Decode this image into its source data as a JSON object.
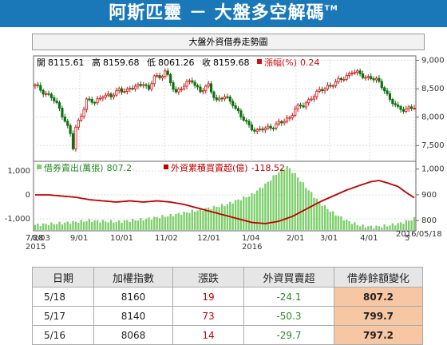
{
  "banner": {
    "title": "阿斯匹靈 － 大盤多空解碼",
    "tm": "TM"
  },
  "chart_title": "大盤外資借券走勢圖",
  "top_legend": {
    "open_label": "開",
    "open": "8115.61",
    "high_label": "高",
    "high": "8159.68",
    "low_label": "低",
    "low": "8061.26",
    "close_label": "收",
    "close": "8159.68",
    "pct_label": "漲幅(%)",
    "pct": "0.24"
  },
  "bottom_legend": {
    "lend_label": "借券賣出(萬張)",
    "lend_value": "807.2",
    "foreign_label": "外資累積買賣超(億)",
    "foreign_value": "-118.52"
  },
  "date_marker": "2016/05/18",
  "chart_data": {
    "type": "candlestick+line+bar",
    "x_ticks": [
      "7/28",
      "8/03",
      "9/01",
      "10/01",
      "11/02",
      "12/01",
      "1/04",
      "2/01",
      "3/01",
      "4/01",
      "5"
    ],
    "x_tick_years": {
      "7/28": "2015",
      "1/04": "2016"
    },
    "price_axis": {
      "ticks": [
        7500,
        8000,
        8500,
        9000
      ],
      "labels": [
        "7,500",
        "8,000",
        "8,500",
        "9,000"
      ],
      "range": [
        7250,
        9050
      ]
    },
    "left_axis": {
      "ticks": [
        1000,
        0,
        -1000
      ],
      "labels": [
        "1,000",
        "0",
        "-1,000"
      ],
      "range": [
        -1500,
        1400
      ]
    },
    "right_axis": {
      "ticks": [
        800,
        900,
        1000
      ],
      "labels": [
        "800",
        "900",
        "1,000"
      ],
      "range": [
        760,
        1030
      ]
    },
    "index_close_path": [
      [
        0,
        8550
      ],
      [
        3,
        8450
      ],
      [
        6,
        8350
      ],
      [
        9,
        8150
      ],
      [
        11,
        7950
      ],
      [
        13,
        7700
      ],
      [
        14,
        7450
      ],
      [
        15,
        7800
      ],
      [
        17,
        8050
      ],
      [
        19,
        8300
      ],
      [
        22,
        8250
      ],
      [
        25,
        8400
      ],
      [
        28,
        8350
      ],
      [
        31,
        8500
      ],
      [
        34,
        8450
      ],
      [
        37,
        8550
      ],
      [
        40,
        8600
      ],
      [
        42,
        8450
      ],
      [
        44,
        8750
      ],
      [
        46,
        8700
      ],
      [
        48,
        8800
      ],
      [
        50,
        8600
      ],
      [
        52,
        8450
      ],
      [
        55,
        8550
      ],
      [
        58,
        8650
      ],
      [
        61,
        8450
      ],
      [
        64,
        8550
      ],
      [
        67,
        8300
      ],
      [
        70,
        8350
      ],
      [
        73,
        8250
      ],
      [
        76,
        8000
      ],
      [
        79,
        7850
      ],
      [
        82,
        7750
      ],
      [
        85,
        7800
      ],
      [
        88,
        7850
      ],
      [
        91,
        7900
      ],
      [
        94,
        8000
      ],
      [
        96,
        8150
      ],
      [
        99,
        8200
      ],
      [
        102,
        8350
      ],
      [
        105,
        8450
      ],
      [
        108,
        8550
      ],
      [
        111,
        8600
      ],
      [
        114,
        8700
      ],
      [
        117,
        8800
      ],
      [
        120,
        8750
      ],
      [
        123,
        8700
      ],
      [
        126,
        8650
      ],
      [
        129,
        8500
      ],
      [
        131,
        8300
      ],
      [
        134,
        8150
      ],
      [
        137,
        8150
      ],
      [
        140,
        8160
      ]
    ],
    "foreign_cumulative_path": [
      [
        0,
        0
      ],
      [
        5,
        0
      ],
      [
        10,
        -50
      ],
      [
        15,
        -100
      ],
      [
        20,
        -200
      ],
      [
        25,
        -250
      ],
      [
        30,
        -300
      ],
      [
        35,
        -250
      ],
      [
        40,
        -300
      ],
      [
        45,
        -250
      ],
      [
        50,
        -300
      ],
      [
        55,
        -400
      ],
      [
        60,
        -550
      ],
      [
        65,
        -700
      ],
      [
        70,
        -850
      ],
      [
        75,
        -1000
      ],
      [
        80,
        -1150
      ],
      [
        85,
        -1200
      ],
      [
        90,
        -1100
      ],
      [
        95,
        -900
      ],
      [
        100,
        -600
      ],
      [
        105,
        -300
      ],
      [
        110,
        -50
      ],
      [
        115,
        200
      ],
      [
        120,
        400
      ],
      [
        124,
        550
      ],
      [
        127,
        600
      ],
      [
        130,
        500
      ],
      [
        134,
        350
      ],
      [
        137,
        100
      ],
      [
        140,
        -118.52
      ]
    ],
    "lend_bars_path": [
      [
        0,
        783
      ],
      [
        10,
        790
      ],
      [
        20,
        800
      ],
      [
        30,
        795
      ],
      [
        40,
        805
      ],
      [
        50,
        820
      ],
      [
        60,
        840
      ],
      [
        70,
        860
      ],
      [
        80,
        900
      ],
      [
        85,
        940
      ],
      [
        90,
        990
      ],
      [
        93,
        1010
      ],
      [
        96,
        980
      ],
      [
        100,
        930
      ],
      [
        105,
        870
      ],
      [
        110,
        830
      ],
      [
        115,
        800
      ],
      [
        120,
        780
      ],
      [
        125,
        775
      ],
      [
        130,
        780
      ],
      [
        135,
        790
      ],
      [
        140,
        807.2
      ]
    ]
  },
  "table": {
    "headers": [
      "日期",
      "加權指數",
      "漲跌",
      "外資買賣超",
      "借券餘額變化"
    ],
    "rows": [
      [
        "5/18",
        "8160",
        "19",
        "-24.1",
        "807.2"
      ],
      [
        "5/17",
        "8140",
        "73",
        "-50.3",
        "799.7"
      ],
      [
        "5/16",
        "8068",
        "14",
        "-29.7",
        "797.2"
      ]
    ]
  },
  "colors": {
    "banner": "#1a78b8",
    "up": "#d01010",
    "down": "#107010",
    "foreign_line": "#c00000",
    "lend_bar": "#7ccf6b",
    "balance_cell": "#f7c6a3"
  }
}
